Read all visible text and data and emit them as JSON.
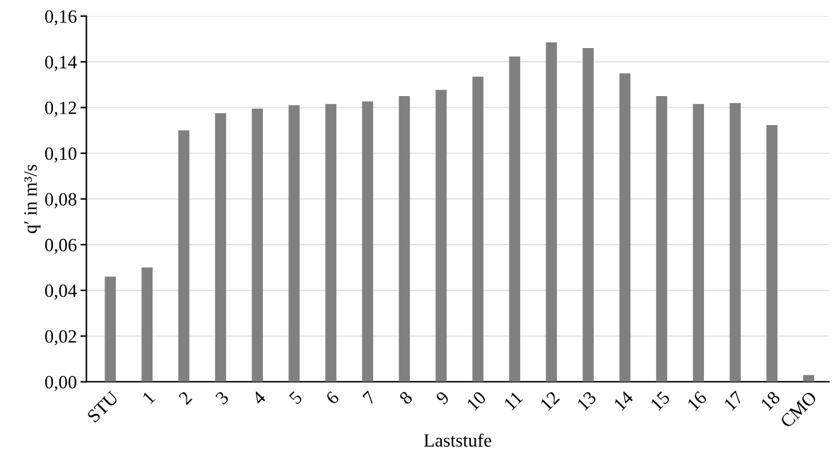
{
  "chart_data": {
    "type": "bar",
    "xlabel": "Laststufe",
    "ylabel": "q′ in m³/s",
    "categories": [
      "STU",
      "1",
      "2",
      "3",
      "4",
      "5",
      "6",
      "7",
      "8",
      "9",
      "10",
      "11",
      "12",
      "13",
      "14",
      "15",
      "16",
      "17",
      "18",
      "CMO"
    ],
    "values": [
      0.046,
      0.05,
      0.11,
      0.1175,
      0.1195,
      0.121,
      0.1215,
      0.1227,
      0.125,
      0.1277,
      0.1335,
      0.1423,
      0.1485,
      0.146,
      0.135,
      0.125,
      0.1215,
      0.122,
      0.1123,
      0.003
    ],
    "color": "#808080",
    "ylim": [
      0,
      0.16
    ],
    "yticks": [
      {
        "value": 0,
        "label": "0,00"
      },
      {
        "value": 0.02,
        "label": "0,02"
      },
      {
        "value": 0.04,
        "label": "0,04"
      },
      {
        "value": 0.06,
        "label": "0,06"
      },
      {
        "value": 0.08,
        "label": "0,08"
      },
      {
        "value": 0.1,
        "label": "0,10"
      },
      {
        "value": 0.12,
        "label": "0,12"
      },
      {
        "value": 0.14,
        "label": "0,14"
      },
      {
        "value": 0.16,
        "label": "0,16"
      }
    ],
    "grid": "y"
  }
}
